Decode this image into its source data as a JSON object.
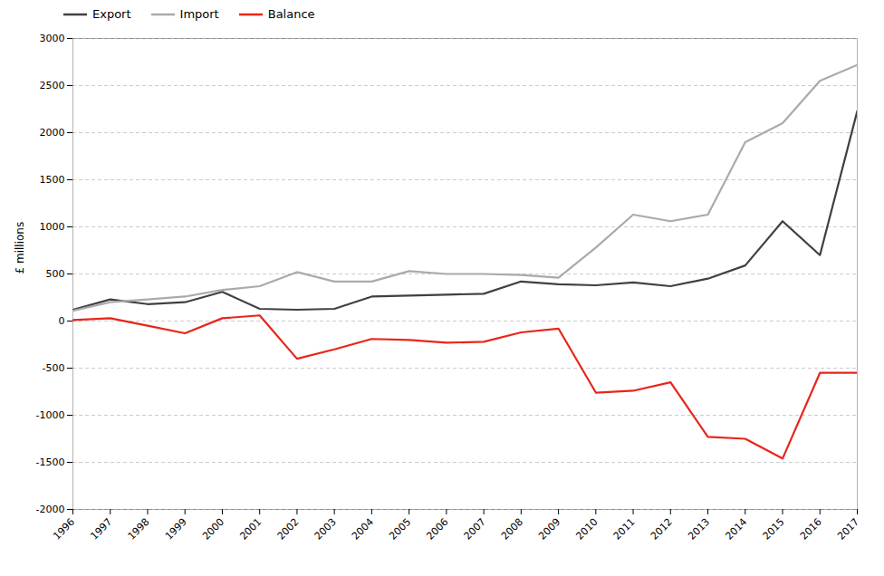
{
  "chart_data": {
    "type": "line",
    "x": [
      1996,
      1997,
      1998,
      1999,
      2000,
      2001,
      2002,
      2003,
      2004,
      2005,
      2006,
      2007,
      2008,
      2009,
      2010,
      2011,
      2012,
      2013,
      2014,
      2015,
      2016,
      2017
    ],
    "series": [
      {
        "name": "Export",
        "color": "#404040",
        "values": [
          120,
          230,
          180,
          200,
          310,
          130,
          120,
          130,
          260,
          270,
          280,
          290,
          420,
          390,
          380,
          410,
          370,
          450,
          590,
          1060,
          700,
          2230
        ]
      },
      {
        "name": "Import",
        "color": "#aaaaaa",
        "values": [
          110,
          200,
          230,
          260,
          330,
          370,
          520,
          420,
          420,
          530,
          500,
          500,
          490,
          460,
          780,
          1130,
          1060,
          1130,
          1900,
          2100,
          2550,
          2720
        ]
      },
      {
        "name": "Balance",
        "color": "#e8251a",
        "values": [
          10,
          30,
          -50,
          -130,
          30,
          60,
          -400,
          -300,
          -190,
          -200,
          -230,
          -220,
          -120,
          -80,
          -760,
          -740,
          -650,
          -1230,
          -1250,
          -1460,
          -550,
          -550
        ]
      }
    ],
    "ylabel": "£ millions",
    "xlim": [
      1996,
      2017
    ],
    "xticks": [
      1996,
      1997,
      1998,
      1999,
      2000,
      2001,
      2002,
      2003,
      2004,
      2005,
      2006,
      2007,
      2008,
      2009,
      2010,
      2011,
      2012,
      2013,
      2014,
      2015,
      2016,
      2017
    ],
    "ylim": [
      -2000,
      3000
    ],
    "yticks": [
      -2000,
      -1500,
      -1000,
      -500,
      0,
      500,
      1000,
      1500,
      2000,
      2500,
      3000
    ],
    "grid": "y",
    "legend": "upper left"
  }
}
